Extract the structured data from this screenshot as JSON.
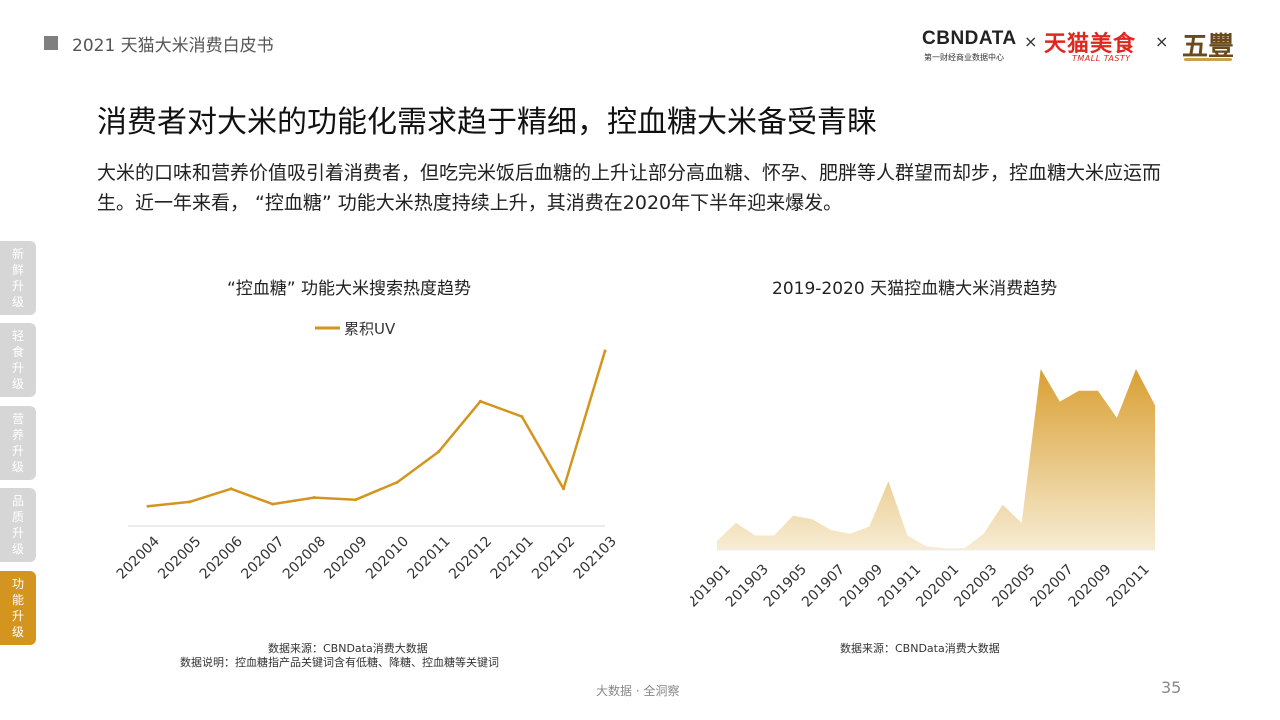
{
  "header": {
    "title": "2021 天猫大米消费白皮书"
  },
  "logos": {
    "cbndata": "CBNDATA",
    "cbndata_sub": "第一财经商业数据中心",
    "times": "×",
    "tmall": "天猫美食",
    "tmall_sub": "TMALL TASTY",
    "wufeng": "五豐"
  },
  "title": "消费者对大米的功能化需求趋于精细，控血糖大米备受青睐",
  "description": "大米的口味和营养价值吸引着消费者，但吃完米饭后血糖的上升让部分高血糖、怀孕、肥胖等人群望而却步，控血糖大米应运而生。近一年来看， “控血糖” 功能大米热度持续上升，其消费在2020年下半年迎来爆发。",
  "side_tabs": [
    {
      "label": "新鲜升级",
      "active": false
    },
    {
      "label": "轻食升级",
      "active": false
    },
    {
      "label": "营养升级",
      "active": false
    },
    {
      "label": "品质升级",
      "active": false
    },
    {
      "label": "功能升级",
      "active": true
    }
  ],
  "colors": {
    "accent": "#d4951f",
    "tab_inactive": "#d6d6d6"
  },
  "chart_data": [
    {
      "type": "line",
      "title": "“控血糖” 功能大米搜索热度趋势",
      "legend": "累积UV",
      "legend_position": "top",
      "categories": [
        "202004",
        "202005",
        "202006",
        "202007",
        "202008",
        "202009",
        "202010",
        "202011",
        "202012",
        "202101",
        "202102",
        "202103"
      ],
      "series": [
        {
          "name": "累积UV",
          "values": [
            9,
            11,
            17,
            10,
            13,
            12,
            20,
            34,
            57,
            50,
            17,
            80
          ]
        }
      ],
      "ylim": [
        0,
        85
      ],
      "y_axis_visible": false
    },
    {
      "type": "area",
      "title": "2019-2020 天猫控血糖大米消费趋势",
      "x": [
        "201901",
        "201902",
        "201903",
        "201904",
        "201905",
        "201906",
        "201907",
        "201908",
        "201909",
        "201910",
        "201911",
        "201912",
        "202001",
        "202002",
        "202003",
        "202004",
        "202005",
        "202006",
        "202007",
        "202008",
        "202009",
        "202010",
        "202011",
        "202012"
      ],
      "tick_labels": [
        "201901",
        "201903",
        "201905",
        "201907",
        "201909",
        "201911",
        "202001",
        "202003",
        "202005",
        "202007",
        "202009",
        "202011"
      ],
      "series": [
        {
          "name": "消费",
          "values": [
            5,
            15,
            8,
            8,
            19,
            17,
            11,
            9,
            13,
            38,
            8,
            2,
            1,
            1,
            9,
            25,
            15,
            100,
            82,
            88,
            88,
            73,
            100,
            80
          ]
        }
      ],
      "ylim": [
        0,
        105
      ],
      "y_axis_visible": false
    }
  ],
  "sources": {
    "left_line1": "数据来源：CBNData消费大数据",
    "left_line2": "数据说明：控血糖指产品关键词含有低糖、降糖、控血糖等关键词",
    "right_line1": "数据来源：CBNData消费大数据"
  },
  "footer": {
    "text": "大数据 · 全洞察",
    "page": "35"
  }
}
